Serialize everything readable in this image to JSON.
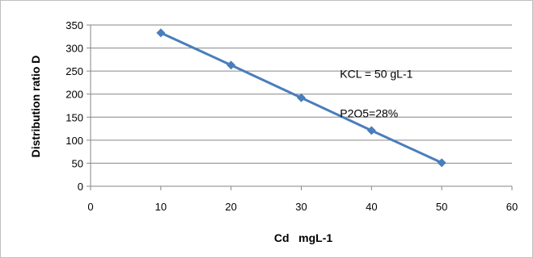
{
  "chart_data": {
    "type": "scatter",
    "title": "",
    "xlabel": "Cd   mgL-1",
    "ylabel": "Distribution ratio D",
    "xlim": [
      0,
      60
    ],
    "ylim": [
      0,
      350
    ],
    "x_ticks": [
      "0",
      "10",
      "20",
      "30",
      "40",
      "50",
      "60"
    ],
    "y_ticks": [
      "0",
      "50",
      "100",
      "150",
      "200",
      "250",
      "300",
      "350"
    ],
    "grid": "horizontal",
    "legend": "none",
    "series": [
      {
        "x": [
          10,
          20,
          30,
          40,
          50
        ],
        "y": [
          333,
          263,
          192,
          121,
          51
        ],
        "color": "#4a7ebb",
        "marker": "diamond",
        "line": true
      }
    ],
    "annotations": [
      {
        "text": "KCL = 50 gL-1",
        "x": 35.5,
        "y": 235
      },
      {
        "text": "P2O5=28%",
        "x": 35.5,
        "y": 150
      }
    ]
  }
}
